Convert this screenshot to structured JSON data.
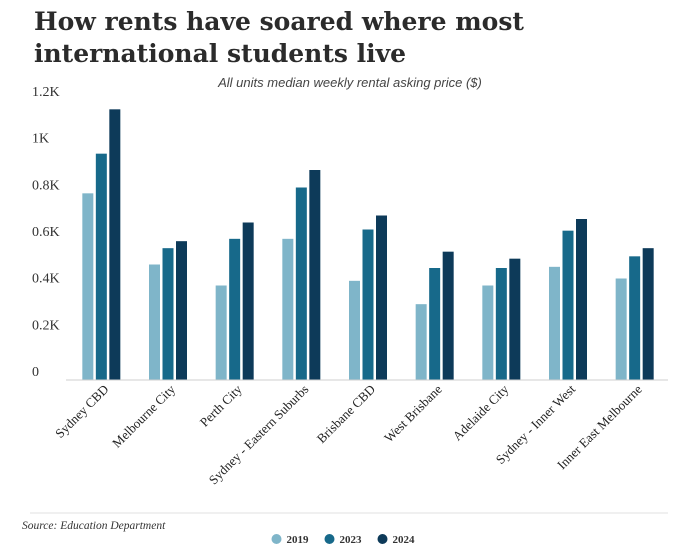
{
  "chart_data": {
    "type": "bar",
    "title_lines": [
      "How rents have soared where most",
      "international students live"
    ],
    "subtitle": "All units median weekly rental asking price ($)",
    "source": "Source: Education Department",
    "ylim": [
      0,
      1200
    ],
    "yticks": [
      {
        "value": 0,
        "label": "0"
      },
      {
        "value": 200,
        "label": "0.2K"
      },
      {
        "value": 400,
        "label": "0.4K"
      },
      {
        "value": 600,
        "label": "0.6K"
      },
      {
        "value": 800,
        "label": "0.8K"
      },
      {
        "value": 1000,
        "label": "1K"
      },
      {
        "value": 1200,
        "label": "1.2K"
      }
    ],
    "categories": [
      "Sydney CBD",
      "Melbourne City",
      "Perth City",
      "Sydney - Eastern Suburbs",
      "Brisbane CBD",
      "West Brisbane",
      "Adelaide City",
      "Sydney - Inner West",
      "Inner East Melbourne"
    ],
    "series": [
      {
        "name": "2019",
        "color": "#7fb5c9",
        "values": [
          800,
          495,
          405,
          605,
          425,
          325,
          405,
          485,
          435
        ]
      },
      {
        "name": "2023",
        "color": "#17698a",
        "values": [
          970,
          565,
          605,
          825,
          645,
          480,
          480,
          640,
          530
        ]
      },
      {
        "name": "2024",
        "color": "#0d3a59",
        "values": [
          1160,
          595,
          675,
          900,
          705,
          550,
          520,
          690,
          565
        ]
      }
    ],
    "legend_position": "bottom-center"
  }
}
